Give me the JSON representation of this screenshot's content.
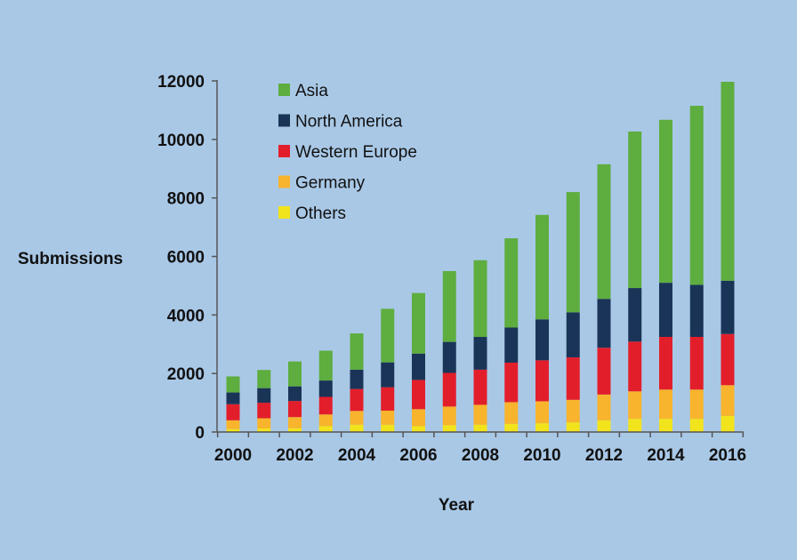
{
  "chart_data": {
    "type": "bar",
    "stacked": true,
    "title": "",
    "xlabel": "Year",
    "ylabel": "Submissions",
    "ylim": [
      0,
      12000
    ],
    "yticks": [
      0,
      2000,
      4000,
      6000,
      8000,
      10000,
      12000
    ],
    "xtick_labels": [
      "2000",
      "2002",
      "2004",
      "2006",
      "2008",
      "2010",
      "2012",
      "2014",
      "2016"
    ],
    "categories": [
      "2000",
      "2001",
      "2002",
      "2003",
      "2004",
      "2005",
      "2006",
      "2007",
      "2008",
      "2009",
      "2010",
      "2011",
      "2012",
      "2013",
      "2014",
      "2015",
      "2016"
    ],
    "legend_position": "top-left",
    "grid": false,
    "series": [
      {
        "name": "Others",
        "color": "#f2e41c",
        "values": [
          100,
          120,
          130,
          200,
          250,
          250,
          200,
          230,
          250,
          280,
          300,
          330,
          400,
          450,
          450,
          450,
          550
        ]
      },
      {
        "name": "Germany",
        "color": "#f8b42c",
        "values": [
          300,
          350,
          380,
          400,
          470,
          480,
          580,
          640,
          680,
          740,
          750,
          770,
          880,
          940,
          1000,
          1000,
          1050
        ]
      },
      {
        "name": "Western Europe",
        "color": "#e31e2b",
        "values": [
          550,
          530,
          550,
          600,
          750,
          800,
          1000,
          1150,
          1200,
          1350,
          1400,
          1450,
          1600,
          1700,
          1800,
          1800,
          1750
        ]
      },
      {
        "name": "North America",
        "color": "#1a3458",
        "values": [
          400,
          500,
          500,
          560,
          660,
          850,
          900,
          1060,
          1120,
          1200,
          1400,
          1540,
          1670,
          1830,
          1850,
          1780,
          1820
        ]
      },
      {
        "name": "Asia",
        "color": "#5ead3f",
        "values": [
          550,
          620,
          850,
          1020,
          1240,
          1830,
          2070,
          2420,
          2620,
          3050,
          3570,
          4110,
          4600,
          5350,
          5570,
          6120,
          6800
        ]
      }
    ],
    "legend_order": [
      "Asia",
      "North America",
      "Western Europe",
      "Germany",
      "Others"
    ]
  }
}
